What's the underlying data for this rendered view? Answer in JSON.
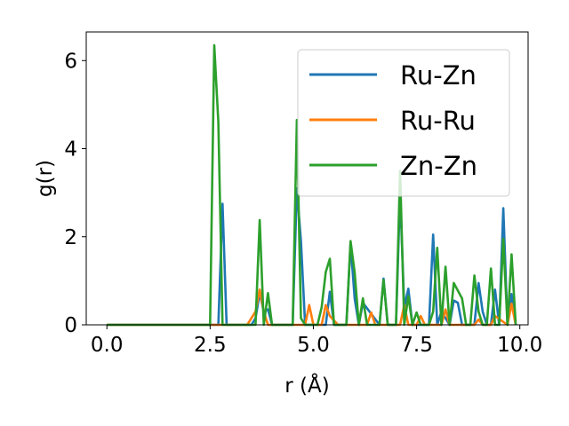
{
  "chart_data": {
    "type": "line",
    "xlabel": "r (Å)",
    "ylabel": "g(r)",
    "xlim": [
      -0.5,
      10.2
    ],
    "ylim": [
      0,
      6.65
    ],
    "xticks": [
      0.0,
      2.5,
      5.0,
      7.5,
      10.0
    ],
    "xtick_labels": [
      "0.0",
      "2.5",
      "5.0",
      "7.5",
      "10.0"
    ],
    "yticks": [
      0,
      2,
      4,
      6
    ],
    "ytick_labels": [
      "0",
      "2",
      "4",
      "6"
    ],
    "grid": false,
    "legend_position": "top-right",
    "series": [
      {
        "name": "Ru-Zn",
        "color": "#1f77b4",
        "x": [
          0,
          2.5,
          2.7,
          2.8,
          2.9,
          3.5,
          3.6,
          3.7,
          3.8,
          3.9,
          4.0,
          4.5,
          4.6,
          4.7,
          4.8,
          5.3,
          5.4,
          5.5,
          5.8,
          5.9,
          6.0,
          6.1,
          6.2,
          6.6,
          6.7,
          6.8,
          7.0,
          7.1,
          7.2,
          7.3,
          7.4,
          7.5,
          7.8,
          7.9,
          8.0,
          8.1,
          8.3,
          8.4,
          8.5,
          8.6,
          8.9,
          9.0,
          9.1,
          9.2,
          9.3,
          9.4,
          9.5,
          9.6,
          9.7,
          9.8,
          9.9
        ],
        "y": [
          0,
          0,
          0,
          2.75,
          0,
          0,
          0.15,
          0.72,
          0.3,
          0.35,
          0,
          0,
          3.1,
          1.9,
          0,
          0,
          0.75,
          0,
          0,
          1.85,
          0.6,
          0,
          0.5,
          0,
          1.05,
          0,
          0,
          3.0,
          0.4,
          0.82,
          0,
          0,
          0,
          2.05,
          0,
          0.3,
          0,
          0.55,
          0.5,
          0,
          0,
          0.95,
          0.3,
          0,
          0,
          0.8,
          0,
          2.65,
          0,
          0.7,
          0
        ]
      },
      {
        "name": "Ru-Ru",
        "color": "#ff7f0e",
        "x": [
          0,
          3.4,
          3.6,
          3.7,
          3.8,
          3.9,
          4.8,
          4.9,
          5.0,
          5.2,
          5.3,
          5.4,
          5.6,
          6.3,
          6.4,
          6.5,
          7.1,
          7.2,
          7.3,
          7.5,
          7.6,
          7.7,
          8.1,
          8.2,
          8.3,
          8.9,
          9.0,
          9.1,
          9.3,
          9.4,
          9.7,
          9.8,
          9.9
        ],
        "y": [
          0,
          0,
          0.3,
          0.8,
          0.3,
          0,
          0,
          0.45,
          0,
          0,
          0.45,
          0.2,
          0,
          0,
          0.28,
          0,
          0,
          0.45,
          0,
          0,
          0.2,
          0,
          0,
          0.35,
          0,
          0,
          0.12,
          0,
          0,
          0.2,
          0,
          0.48,
          0
        ]
      },
      {
        "name": "Zn-Zn",
        "color": "#2ca02c",
        "x": [
          0,
          2.5,
          2.6,
          2.7,
          2.8,
          3.5,
          3.6,
          3.7,
          3.8,
          3.9,
          4.0,
          4.1,
          4.5,
          4.6,
          4.7,
          4.8,
          5.1,
          5.2,
          5.3,
          5.4,
          5.5,
          5.8,
          5.9,
          6.0,
          6.1,
          6.2,
          6.3,
          6.6,
          6.7,
          6.8,
          6.9,
          7.0,
          7.1,
          7.2,
          7.3,
          7.4,
          7.5,
          7.6,
          7.7,
          7.8,
          7.9,
          8.0,
          8.1,
          8.2,
          8.3,
          8.4,
          8.6,
          8.7,
          8.8,
          8.9,
          9.0,
          9.1,
          9.2,
          9.3,
          9.4,
          9.5,
          9.6,
          9.7,
          9.8,
          9.9
        ],
        "y": [
          0,
          0,
          6.35,
          4.6,
          0,
          0,
          0,
          2.38,
          0,
          0.72,
          0,
          0,
          0,
          4.65,
          0.15,
          0,
          0,
          0.4,
          1.2,
          1.5,
          0,
          0,
          1.9,
          1.2,
          0,
          0.6,
          0,
          0,
          1.02,
          0,
          0,
          0,
          3.5,
          0,
          0.65,
          0,
          0.28,
          0,
          0,
          0,
          0.3,
          1.75,
          0,
          1.32,
          0,
          0.95,
          0.6,
          0,
          0,
          1.12,
          0.3,
          0,
          0,
          1.28,
          0,
          0,
          1.95,
          0,
          1.6,
          0
        ]
      }
    ]
  }
}
